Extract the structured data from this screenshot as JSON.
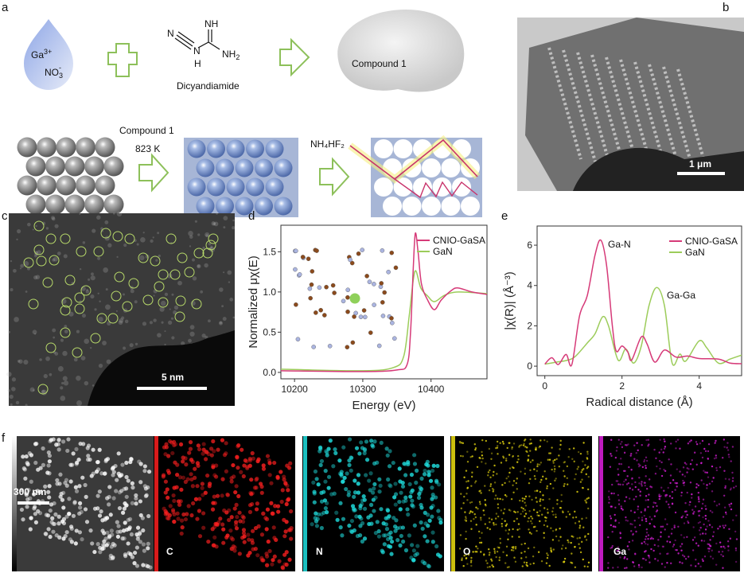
{
  "panels": {
    "a": {
      "label": "a",
      "ion1": "Ga",
      "ion1_sup": "3+",
      "ion2": "NO",
      "ion2_sub": "3",
      "ion2_sup": "-",
      "mol_atoms": {
        "nh": "NH",
        "n1": "N",
        "n2": "N",
        "h": "H",
        "nh2": "NH",
        "nh2_sub": "2"
      },
      "molecule_name": "Dicyandiamide",
      "product": "Compound 1",
      "step1_line1": "Compound 1",
      "step1_line2": "823 K",
      "step2": "NH₄HF₂"
    },
    "b": {
      "label": "b",
      "scale_bar": "1 μm"
    },
    "c": {
      "label": "c",
      "scale_bar": "5 nm"
    },
    "f": {
      "label": "f",
      "scale_bar": "300 nm",
      "maps": [
        "C",
        "N",
        "O",
        "Ga"
      ]
    }
  },
  "colors": {
    "cnio": "#d63a78",
    "gan": "#9ccc5a",
    "arrow": "#8dc05a",
    "C": "#ff2020",
    "N": "#20e0e0",
    "O": "#f0e010",
    "Ga": "#e020e0"
  },
  "chart_data": [
    {
      "panel_label": "d",
      "type": "line",
      "xlabel": "Energy (eV)",
      "ylabel": "Normalized μχ(E)",
      "xlim": [
        10180,
        10482
      ],
      "ylim": [
        -0.08,
        1.83
      ],
      "xticks": [
        10200,
        10300,
        10400
      ],
      "yticks": [
        "0.0",
        "0.5",
        "1.0",
        "1.5"
      ],
      "legend_position": "top-right",
      "series": [
        {
          "name": "CNIO-GaSA",
          "color": "#d63a78",
          "points": [
            [
              10180,
              0.02
            ],
            [
              10300,
              0.01
            ],
            [
              10350,
              0.03
            ],
            [
              10365,
              0.1
            ],
            [
              10370,
              0.5
            ],
            [
              10374,
              1.3
            ],
            [
              10377,
              1.73
            ],
            [
              10381,
              1.5
            ],
            [
              10386,
              1.1
            ],
            [
              10395,
              0.9
            ],
            [
              10405,
              0.78
            ],
            [
              10415,
              0.9
            ],
            [
              10430,
              1.02
            ],
            [
              10440,
              1.05
            ],
            [
              10460,
              1.0
            ],
            [
              10482,
              0.97
            ]
          ]
        },
        {
          "name": "GaN",
          "color": "#9ccc5a",
          "points": [
            [
              10180,
              0.04
            ],
            [
              10300,
              0.02
            ],
            [
              10345,
              0.06
            ],
            [
              10360,
              0.2
            ],
            [
              10368,
              0.7
            ],
            [
              10374,
              1.15
            ],
            [
              10378,
              1.26
            ],
            [
              10385,
              1.05
            ],
            [
              10395,
              0.95
            ],
            [
              10405,
              0.88
            ],
            [
              10420,
              0.96
            ],
            [
              10440,
              1.0
            ],
            [
              10482,
              0.98
            ]
          ]
        }
      ]
    },
    {
      "panel_label": "e",
      "type": "line",
      "xlabel": "Radical distance (Å)",
      "ylabel": "|χ(R)| (Å⁻³)",
      "xlim": [
        -0.2,
        5.1
      ],
      "ylim": [
        -0.47,
        6.95
      ],
      "xticks": [
        0,
        2,
        4
      ],
      "yticks": [
        0,
        2,
        4,
        6
      ],
      "legend_position": "top-right",
      "annotations": [
        "Ga-N",
        "Ga-Ga"
      ],
      "series": [
        {
          "name": "CNIO-GaSA",
          "color": "#d63a78",
          "points": [
            [
              0,
              0.1
            ],
            [
              0.18,
              0.42
            ],
            [
              0.35,
              0.08
            ],
            [
              0.55,
              0.58
            ],
            [
              0.7,
              0.08
            ],
            [
              0.9,
              2.5
            ],
            [
              1.1,
              3.5
            ],
            [
              1.3,
              5.5
            ],
            [
              1.45,
              6.25
            ],
            [
              1.6,
              5
            ],
            [
              1.75,
              2
            ],
            [
              1.85,
              0.75
            ],
            [
              2,
              1.0
            ],
            [
              2.15,
              0.7
            ],
            [
              2.25,
              0.3
            ],
            [
              2.5,
              1.45
            ],
            [
              2.65,
              1.1
            ],
            [
              2.85,
              0.2
            ],
            [
              3.1,
              0.8
            ],
            [
              3.4,
              0.45
            ],
            [
              3.7,
              0.5
            ],
            [
              4,
              0.38
            ],
            [
              4.5,
              0.35
            ],
            [
              4.8,
              0.15
            ],
            [
              5.1,
              0.12
            ]
          ]
        },
        {
          "name": "GaN",
          "color": "#9ccc5a",
          "points": [
            [
              0,
              0.1
            ],
            [
              0.3,
              0.2
            ],
            [
              0.6,
              0.3
            ],
            [
              0.8,
              0.5
            ],
            [
              1.1,
              1.15
            ],
            [
              1.3,
              1.6
            ],
            [
              1.5,
              2.45
            ],
            [
              1.65,
              2
            ],
            [
              1.9,
              0.3
            ],
            [
              2.1,
              0.85
            ],
            [
              2.3,
              0.15
            ],
            [
              2.5,
              1
            ],
            [
              2.7,
              3
            ],
            [
              2.9,
              3.9
            ],
            [
              3.1,
              3
            ],
            [
              3.3,
              0.15
            ],
            [
              3.5,
              0.6
            ],
            [
              3.65,
              0.25
            ],
            [
              4,
              1.25
            ],
            [
              4.2,
              0.9
            ],
            [
              4.5,
              0.15
            ],
            [
              4.8,
              0.35
            ],
            [
              5.1,
              0.55
            ]
          ]
        }
      ]
    }
  ]
}
